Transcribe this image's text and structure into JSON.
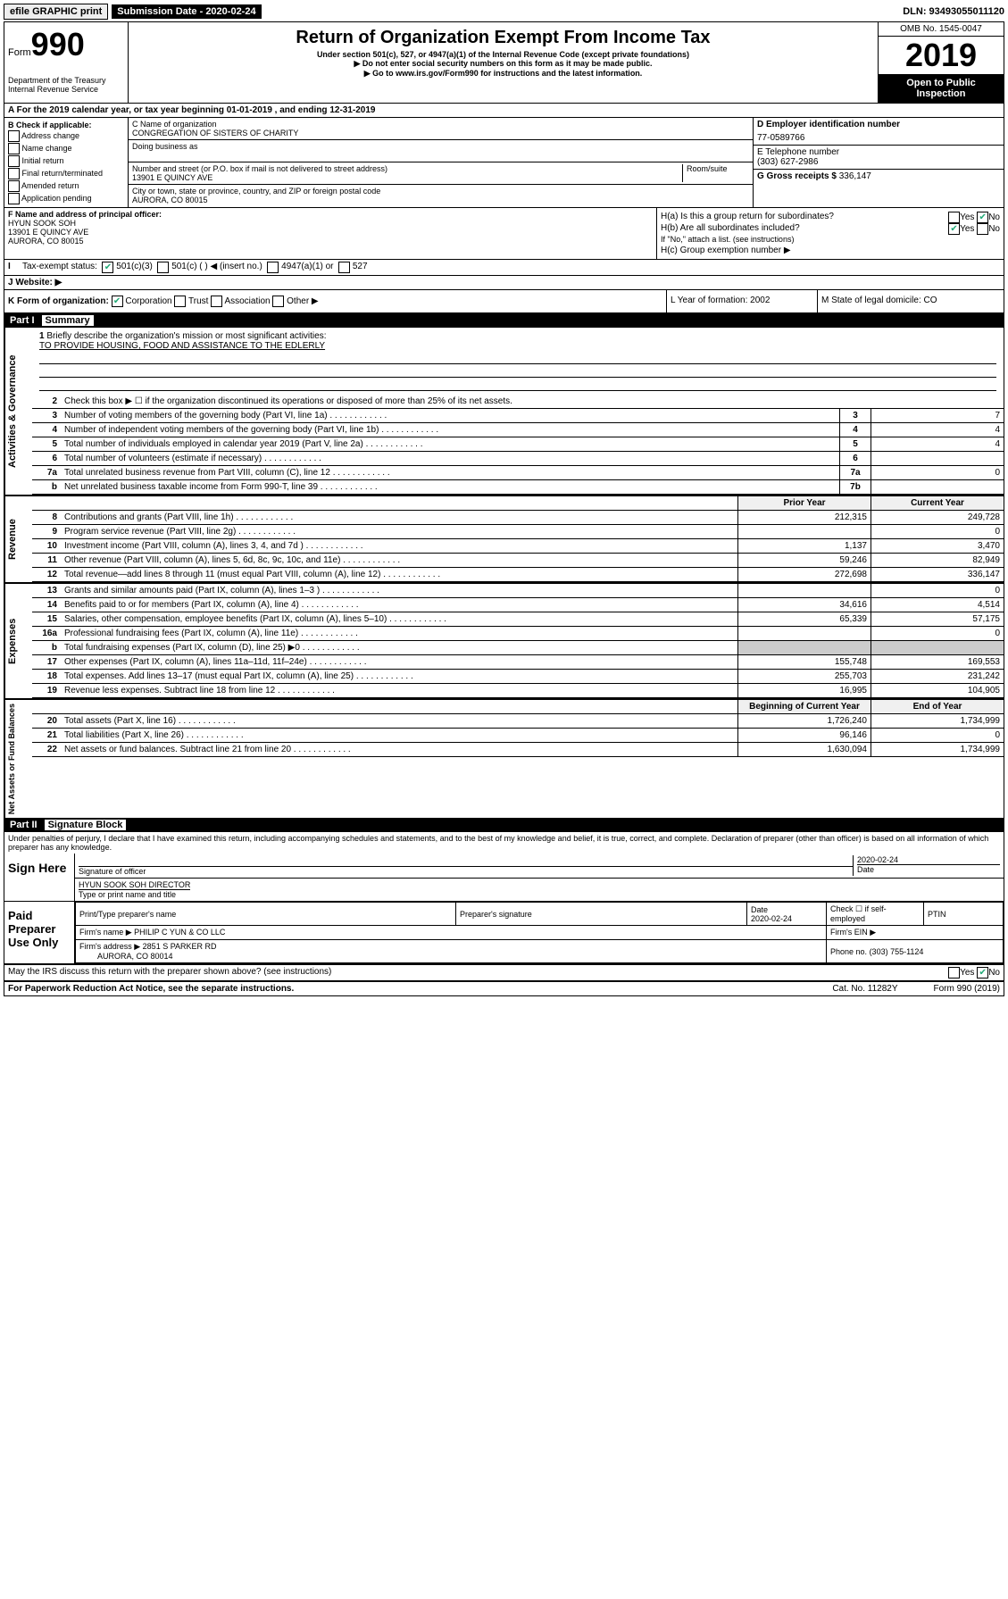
{
  "topbar": {
    "efile": "efile GRAPHIC print",
    "submission_label": "Submission Date - 2020-02-24",
    "dln": "DLN: 93493055011120"
  },
  "header": {
    "form_label": "Form",
    "form_number": "990",
    "dept": "Department of the Treasury\nInternal Revenue Service",
    "title": "Return of Organization Exempt From Income Tax",
    "sub1": "Under section 501(c), 527, or 4947(a)(1) of the Internal Revenue Code (except private foundations)",
    "sub2": "▶ Do not enter social security numbers on this form as it may be made public.",
    "sub3": "▶ Go to www.irs.gov/Form990 for instructions and the latest information.",
    "omb": "OMB No. 1545-0047",
    "year": "2019",
    "open": "Open to Public Inspection"
  },
  "rowA": "A For the 2019 calendar year, or tax year beginning 01-01-2019   , and ending 12-31-2019",
  "boxB": {
    "title": "B Check if applicable:",
    "opts": [
      "Address change",
      "Name change",
      "Initial return",
      "Final return/terminated",
      "Amended return",
      "Application pending"
    ]
  },
  "boxC": {
    "name_label": "C Name of organization",
    "name": "CONGREGATION OF SISTERS OF CHARITY",
    "dba_label": "Doing business as",
    "addr_label": "Number and street (or P.O. box if mail is not delivered to street address)",
    "room_label": "Room/suite",
    "addr": "13901 E QUINCY AVE",
    "city_label": "City or town, state or province, country, and ZIP or foreign postal code",
    "city": "AURORA, CO  80015"
  },
  "boxD": {
    "ein_label": "D Employer identification number",
    "ein": "77-0589766",
    "phone_label": "E Telephone number",
    "phone": "(303) 627-2986",
    "gross_label": "G Gross receipts $",
    "gross": "336,147"
  },
  "boxF": {
    "label": "F  Name and address of principal officer:",
    "name": "HYUN SOOK SOH",
    "addr1": "13901 E QUINCY AVE",
    "addr2": "AURORA, CO  80015"
  },
  "boxH": {
    "ha": "H(a)  Is this a group return for subordinates?",
    "hb": "H(b)  Are all subordinates included?",
    "hb_note": "If \"No,\" attach a list. (see instructions)",
    "hc": "H(c)  Group exemption number ▶"
  },
  "rowI": {
    "label": "Tax-exempt status:",
    "opts1": "501(c)(3)",
    "opts2": "501(c) (  ) ◀ (insert no.)",
    "opts3": "4947(a)(1) or",
    "opts4": "527"
  },
  "rowJ": "J  Website: ▶",
  "rowK": {
    "label": "K Form of organization:",
    "corp": "Corporation",
    "trust": "Trust",
    "assoc": "Association",
    "other": "Other ▶",
    "l": "L Year of formation: 2002",
    "m": "M State of legal domicile: CO"
  },
  "part1": {
    "label": "Part I",
    "title": "Summary"
  },
  "summary": {
    "q1": "Briefly describe the organization's mission or most significant activities:",
    "mission": "TO PROVIDE HOUSING, FOOD AND ASSISTANCE TO THE EDLERLY",
    "q2": "Check this box ▶ ☐  if the organization discontinued its operations or disposed of more than 25% of its net assets.",
    "rows_gov": [
      {
        "n": "3",
        "d": "Number of voting members of the governing body (Part VI, line 1a)",
        "box": "3",
        "v": "7"
      },
      {
        "n": "4",
        "d": "Number of independent voting members of the governing body (Part VI, line 1b)",
        "box": "4",
        "v": "4"
      },
      {
        "n": "5",
        "d": "Total number of individuals employed in calendar year 2019 (Part V, line 2a)",
        "box": "5",
        "v": "4"
      },
      {
        "n": "6",
        "d": "Total number of volunteers (estimate if necessary)",
        "box": "6",
        "v": ""
      },
      {
        "n": "7a",
        "d": "Total unrelated business revenue from Part VIII, column (C), line 12",
        "box": "7a",
        "v": "0"
      },
      {
        "n": "b",
        "d": "Net unrelated business taxable income from Form 990-T, line 39",
        "box": "7b",
        "v": ""
      }
    ],
    "prior_label": "Prior Year",
    "current_label": "Current Year",
    "rows_rev": [
      {
        "n": "8",
        "d": "Contributions and grants (Part VIII, line 1h)",
        "p": "212,315",
        "c": "249,728"
      },
      {
        "n": "9",
        "d": "Program service revenue (Part VIII, line 2g)",
        "p": "",
        "c": "0"
      },
      {
        "n": "10",
        "d": "Investment income (Part VIII, column (A), lines 3, 4, and 7d )",
        "p": "1,137",
        "c": "3,470"
      },
      {
        "n": "11",
        "d": "Other revenue (Part VIII, column (A), lines 5, 6d, 8c, 9c, 10c, and 11e)",
        "p": "59,246",
        "c": "82,949"
      },
      {
        "n": "12",
        "d": "Total revenue—add lines 8 through 11 (must equal Part VIII, column (A), line 12)",
        "p": "272,698",
        "c": "336,147"
      }
    ],
    "rows_exp": [
      {
        "n": "13",
        "d": "Grants and similar amounts paid (Part IX, column (A), lines 1–3 )",
        "p": "",
        "c": "0"
      },
      {
        "n": "14",
        "d": "Benefits paid to or for members (Part IX, column (A), line 4)",
        "p": "34,616",
        "c": "4,514"
      },
      {
        "n": "15",
        "d": "Salaries, other compensation, employee benefits (Part IX, column (A), lines 5–10)",
        "p": "65,339",
        "c": "57,175"
      },
      {
        "n": "16a",
        "d": "Professional fundraising fees (Part IX, column (A), line 11e)",
        "p": "",
        "c": "0"
      },
      {
        "n": "b",
        "d": "Total fundraising expenses (Part IX, column (D), line 25) ▶0",
        "p": "gray",
        "c": "gray"
      },
      {
        "n": "17",
        "d": "Other expenses (Part IX, column (A), lines 11a–11d, 11f–24e)",
        "p": "155,748",
        "c": "169,553"
      },
      {
        "n": "18",
        "d": "Total expenses. Add lines 13–17 (must equal Part IX, column (A), line 25)",
        "p": "255,703",
        "c": "231,242"
      },
      {
        "n": "19",
        "d": "Revenue less expenses. Subtract line 18 from line 12",
        "p": "16,995",
        "c": "104,905"
      }
    ],
    "begin_label": "Beginning of Current Year",
    "end_label": "End of Year",
    "rows_net": [
      {
        "n": "20",
        "d": "Total assets (Part X, line 16)",
        "p": "1,726,240",
        "c": "1,734,999"
      },
      {
        "n": "21",
        "d": "Total liabilities (Part X, line 26)",
        "p": "96,146",
        "c": "0"
      },
      {
        "n": "22",
        "d": "Net assets or fund balances. Subtract line 21 from line 20",
        "p": "1,630,094",
        "c": "1,734,999"
      }
    ]
  },
  "part2": {
    "label": "Part II",
    "title": "Signature Block"
  },
  "sig": {
    "decl": "Under penalties of perjury, I declare that I have examined this return, including accompanying schedules and statements, and to the best of my knowledge and belief, it is true, correct, and complete. Declaration of preparer (other than officer) is based on all information of which preparer has any knowledge.",
    "sign_here": "Sign Here",
    "sig_label": "Signature of officer",
    "date": "2020-02-24",
    "date_label": "Date",
    "name": "HYUN SOOK SOH  DIRECTOR",
    "name_label": "Type or print name and title",
    "paid": "Paid Preparer Use Only",
    "prep_name_label": "Print/Type preparer's name",
    "prep_sig_label": "Preparer's signature",
    "prep_date": "2020-02-24",
    "check_label": "Check ☐ if self-employed",
    "ptin_label": "PTIN",
    "firm_name_label": "Firm's name    ▶",
    "firm_name": "PHILIP C YUN & CO LLC",
    "firm_ein_label": "Firm's EIN ▶",
    "firm_addr_label": "Firm's address ▶",
    "firm_addr": "2851 S PARKER RD",
    "firm_addr2": "AURORA, CO  80014",
    "firm_phone_label": "Phone no.",
    "firm_phone": "(303) 755-1124",
    "discuss": "May the IRS discuss this return with the preparer shown above? (see instructions)"
  },
  "footer": {
    "paperwork": "For Paperwork Reduction Act Notice, see the separate instructions.",
    "cat": "Cat. No. 11282Y",
    "form": "Form 990 (2019)"
  }
}
